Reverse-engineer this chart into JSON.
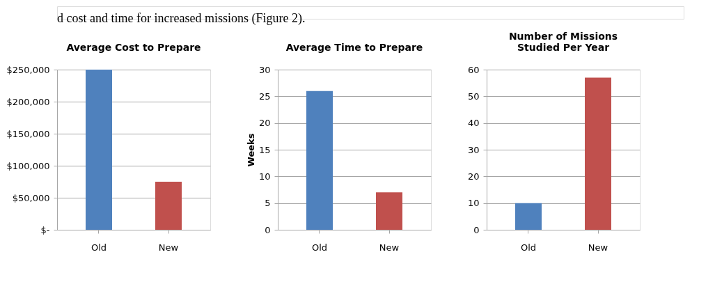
{
  "chart_data": [
    {
      "type": "bar",
      "title": "Average Cost to Prepare",
      "categories": [
        "Old",
        "New"
      ],
      "values": [
        250000,
        75000
      ],
      "colors": [
        "#4f81bd",
        "#c0504d"
      ],
      "ylim": [
        0,
        250000
      ],
      "yticks": [
        {
          "value": 0,
          "label": "$-"
        },
        {
          "value": 50000,
          "label": "$50,000"
        },
        {
          "value": 100000,
          "label": "$100,000"
        },
        {
          "value": 150000,
          "label": "$150,000"
        },
        {
          "value": 200000,
          "label": "$200,000"
        },
        {
          "value": 250000,
          "label": "$250,000"
        }
      ],
      "grid": "y",
      "annotations": [
        "d cost and time for increased missions (Figure 2)."
      ]
    },
    {
      "type": "bar",
      "title": "Average Time to Prepare",
      "ylabel": "Weeks",
      "categories": [
        "Old",
        "New"
      ],
      "values": [
        26,
        7
      ],
      "colors": [
        "#4f81bd",
        "#c0504d"
      ],
      "ylim": [
        0,
        30
      ],
      "yticks": [
        0,
        5,
        10,
        15,
        20,
        25,
        30
      ],
      "grid": "y"
    },
    {
      "type": "bar",
      "title": "Number of Missions\nStudied Per Year",
      "categories": [
        "Old",
        "New"
      ],
      "values": [
        10,
        57
      ],
      "colors": [
        "#4f81bd",
        "#c0504d"
      ],
      "ylim": [
        0,
        60
      ],
      "yticks": [
        0,
        10,
        20,
        30,
        40,
        50,
        60
      ],
      "grid": "y"
    }
  ]
}
